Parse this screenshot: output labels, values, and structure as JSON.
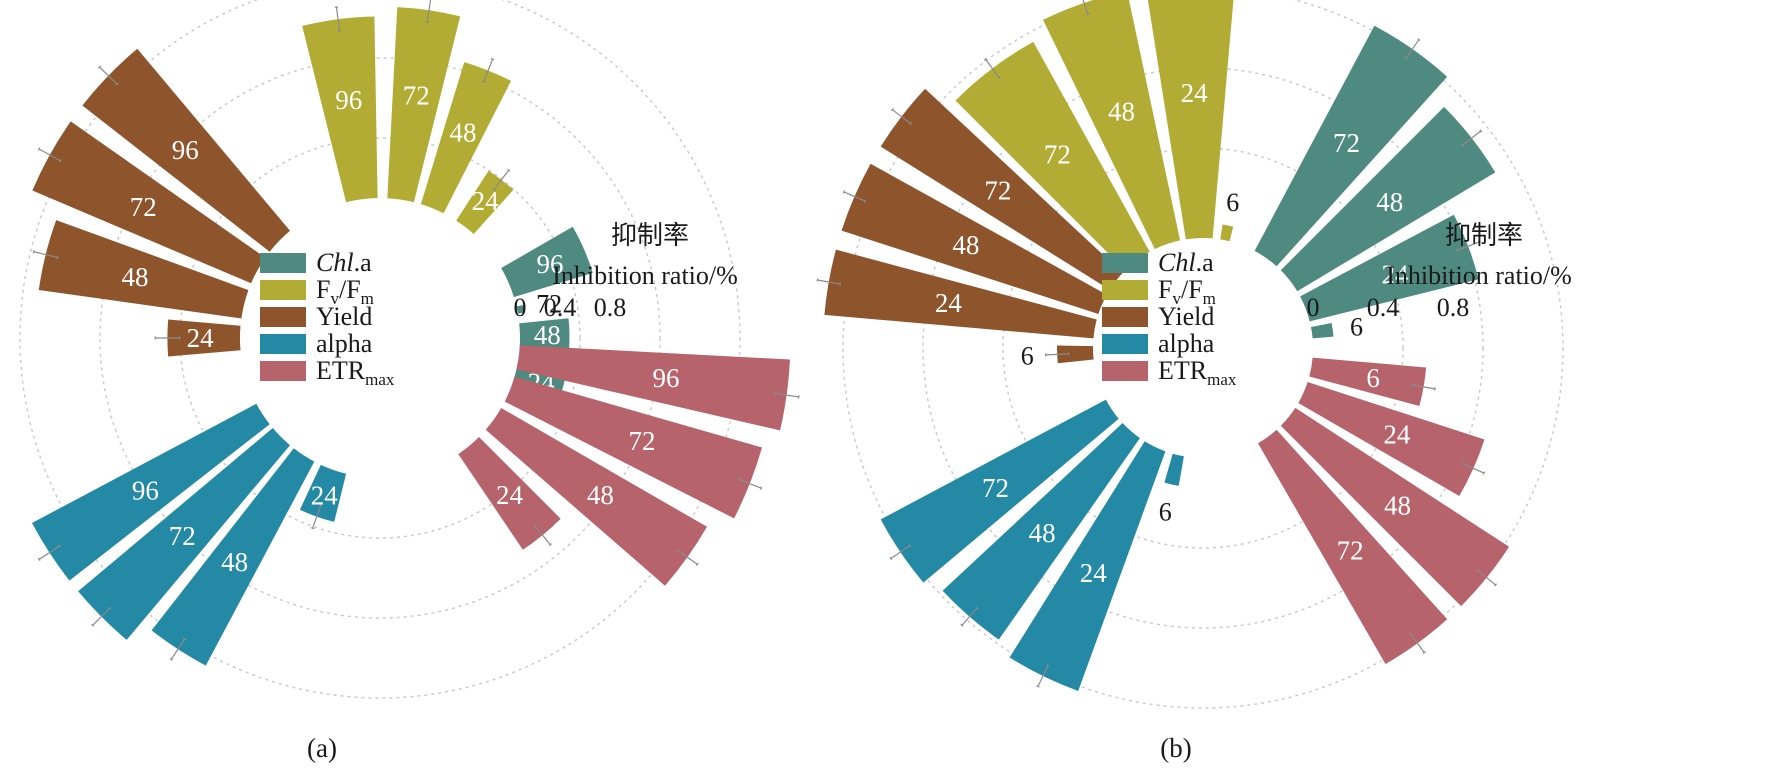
{
  "chart_data": [
    {
      "type": "radial bar",
      "caption": "(a)",
      "axis_title_cn": "抑制率",
      "axis_title_en": "Inhibition ratio/%",
      "axis_ticks": [
        "0",
        "0.4",
        "0.8"
      ],
      "tick_values": [
        0,
        0.4,
        0.8
      ],
      "series": [
        {
          "name": "Chl.a",
          "color": "#4f8a80",
          "categories": [
            "96",
            "72",
            "48",
            "24"
          ],
          "values": [
            0.25,
            0.02,
            0.15,
            0.15
          ]
        },
        {
          "name": "Fv/Fm",
          "color": "#b2ac34",
          "categories": [
            "96",
            "72",
            "48",
            "24"
          ],
          "values": [
            0.55,
            0.58,
            0.45,
            0.18
          ]
        },
        {
          "name": "Yield",
          "color": "#8e542c",
          "categories": [
            "24",
            "48",
            "72",
            "96"
          ],
          "values": [
            0.22,
            0.62,
            0.72,
            0.72
          ]
        },
        {
          "name": "alpha",
          "color": "#2389a4",
          "categories": [
            "24",
            "48",
            "72",
            "96"
          ],
          "values": [
            0.15,
            0.7,
            0.77,
            0.77
          ]
        },
        {
          "name": "ETRmax",
          "color": "#b7636c",
          "categories": [
            "96",
            "72",
            "48",
            "24"
          ],
          "values": [
            0.82,
            0.78,
            0.72,
            0.35
          ]
        }
      ]
    },
    {
      "type": "radial bar",
      "caption": "(b)",
      "axis_title_cn": "抑制率",
      "axis_title_en": "Inhibition ratio/%",
      "axis_ticks": [
        "0",
        "0.4",
        "0.8"
      ],
      "tick_values": [
        0,
        0.4,
        0.8
      ],
      "series": [
        {
          "name": "Chl.a",
          "color": "#4f8a80",
          "categories": [
            "72",
            "48",
            "24",
            "6"
          ],
          "values": [
            0.85,
            0.77,
            0.58,
            0.07
          ]
        },
        {
          "name": "Fv/Fm",
          "color": "#b2ac34",
          "categories": [
            "72",
            "48",
            "24",
            "6"
          ],
          "values": [
            0.8,
            0.85,
            0.88,
            0.05
          ]
        },
        {
          "name": "Yield",
          "color": "#8e542c",
          "categories": [
            "6",
            "24",
            "48",
            "72"
          ],
          "values": [
            0.12,
            0.9,
            0.9,
            0.9
          ]
        },
        {
          "name": "alpha",
          "color": "#2389a4",
          "categories": [
            "6",
            "24",
            "48",
            "72"
          ],
          "values": [
            0.1,
            0.85,
            0.82,
            0.85
          ]
        },
        {
          "name": "ETRmax",
          "color": "#b7636c",
          "categories": [
            "6",
            "24",
            "48",
            "72"
          ],
          "values": [
            0.38,
            0.62,
            0.85,
            0.85
          ]
        }
      ]
    }
  ]
}
